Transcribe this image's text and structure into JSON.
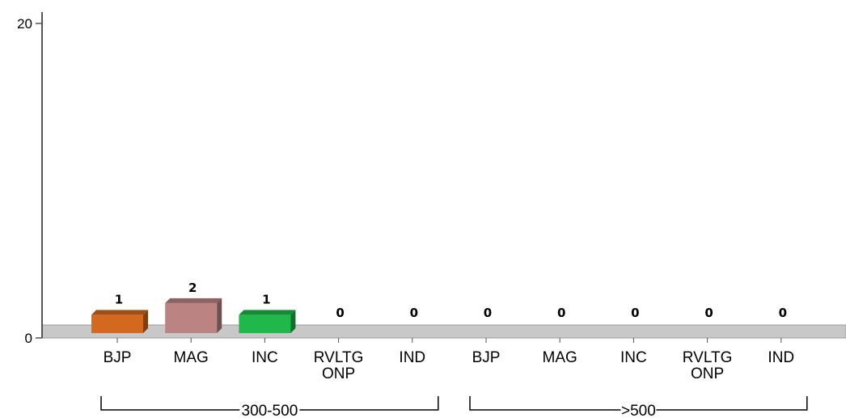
{
  "chart_data": {
    "type": "bar",
    "title": "",
    "xlabel": "",
    "ylabel": "",
    "ylim": [
      0,
      20
    ],
    "y_ticks": [
      "0",
      "20"
    ],
    "groups": [
      {
        "label": "300-500",
        "categories": [
          {
            "label": [
              "BJP"
            ],
            "value": 1,
            "color": "#d2691e"
          },
          {
            "label": [
              "MAG"
            ],
            "value": 2,
            "color": "#bc8383"
          },
          {
            "label": [
              "INC"
            ],
            "value": 1,
            "color": "#1fb84a"
          },
          {
            "label": [
              "RVLTG",
              "ONP"
            ],
            "value": 0,
            "color": "#888888"
          },
          {
            "label": [
              "IND"
            ],
            "value": 0,
            "color": "#888888"
          }
        ]
      },
      {
        "label": ">500",
        "categories": [
          {
            "label": [
              "BJP"
            ],
            "value": 0,
            "color": "#d2691e"
          },
          {
            "label": [
              "MAG"
            ],
            "value": 0,
            "color": "#bc8383"
          },
          {
            "label": [
              "INC"
            ],
            "value": 0,
            "color": "#1fb84a"
          },
          {
            "label": [
              "RVLTG",
              "ONP"
            ],
            "value": 0,
            "color": "#888888"
          },
          {
            "label": [
              "IND"
            ],
            "value": 0,
            "color": "#888888"
          }
        ]
      }
    ],
    "grid": false,
    "legend": "none"
  }
}
